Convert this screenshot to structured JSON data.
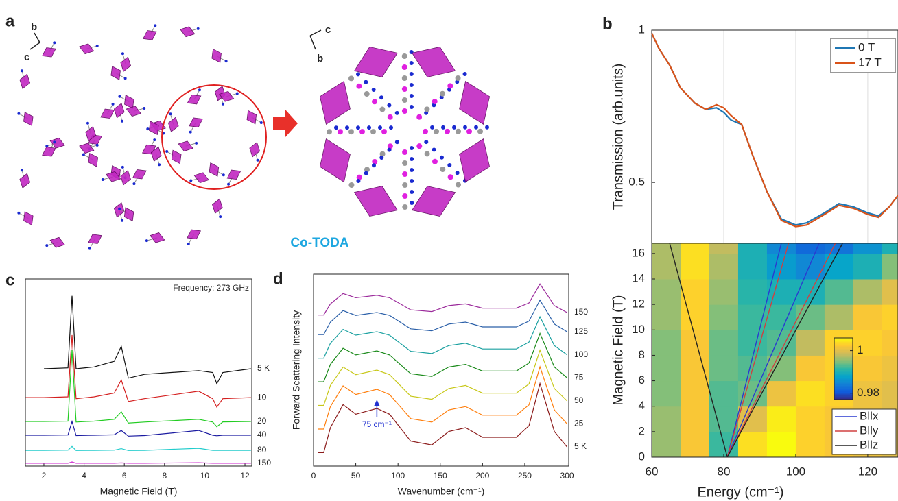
{
  "panel_labels": [
    "a",
    "b",
    "c",
    "d"
  ],
  "structure": {
    "axes_left": [
      "b",
      "c"
    ],
    "axes_right": [
      "c",
      "b"
    ],
    "compound": "Co-TODA"
  },
  "chart_data": [
    {
      "type": "line",
      "annotation": "Frequency: 273 GHz",
      "x_label": "Magnetic Field (T)",
      "x": [
        1.1,
        2,
        3.2,
        3.4,
        3.6,
        4.5,
        5.5,
        5.85,
        6.2,
        7,
        9.7,
        10.4,
        10.6,
        10.9,
        12.3
      ],
      "xlim": [
        1.08,
        12.34
      ],
      "xticks": [
        2,
        4,
        6,
        8,
        10,
        12
      ],
      "ylim": [
        0,
        100
      ],
      "series": [
        {
          "name": "5 K",
          "color": "#111111",
          "values": [
            null,
            52,
            52.5,
            91,
            52,
            53,
            56,
            64,
            47,
            49,
            51,
            50,
            44,
            50,
            52
          ]
        },
        {
          "name": "10",
          "color": "#d42020",
          "values": [
            36.6,
            36.6,
            37,
            70,
            36,
            37,
            39,
            46,
            34.5,
            36,
            40,
            36,
            31.5,
            36,
            36.6
          ]
        },
        {
          "name": "20",
          "color": "#22cc22",
          "values": [
            23.8,
            23.8,
            24,
            62,
            23.5,
            24,
            25,
            29,
            23,
            23.5,
            25,
            23.5,
            21,
            23.6,
            23.8
          ]
        },
        {
          "name": "40",
          "color": "#1a1aa0",
          "values": [
            16.5,
            16.5,
            16.6,
            23.8,
            16.3,
            16.5,
            16.7,
            19,
            16,
            16.3,
            19,
            16.5,
            16.2,
            16.5,
            16.5
          ]
        },
        {
          "name": "80",
          "color": "#22cccc",
          "values": [
            8.4,
            8.4,
            8.5,
            10.5,
            8.3,
            8.4,
            8.5,
            9.3,
            8.3,
            8.4,
            9.5,
            8.4,
            8.4,
            8.4,
            8.4
          ]
        },
        {
          "name": "150",
          "color": "#cc22cc",
          "values": [
            1.5,
            1.5,
            1.5,
            2.2,
            1.5,
            1.5,
            1.5,
            1.7,
            1.5,
            1.5,
            1.8,
            1.5,
            1.5,
            1.5,
            1.5
          ]
        }
      ]
    },
    {
      "type": "line",
      "y_label": "Forward Scattering Intensity",
      "x_label": "Wavenumber (cm⁻¹)",
      "annotation": {
        "text": "75 cm⁻¹",
        "x": 75
      },
      "x": [
        5,
        12,
        20,
        35,
        50,
        75,
        90,
        115,
        140,
        160,
        180,
        200,
        240,
        255,
        268,
        285,
        300
      ],
      "xlim": [
        0,
        302
      ],
      "xticks": [
        0,
        50,
        100,
        150,
        200,
        250,
        300
      ],
      "ylim": [
        0,
        100
      ],
      "series": [
        {
          "name": "150",
          "color": "#9b2a9b",
          "values": [
            78.7,
            78.7,
            84.5,
            89.9,
            87.7,
            89,
            87.7,
            81.4,
            80.5,
            83.6,
            84.5,
            82.3,
            82.3,
            85,
            94.9,
            83.6,
            80
          ]
        },
        {
          "name": "125",
          "color": "#2a5fa8",
          "values": [
            68.5,
            68.5,
            75,
            81,
            78.5,
            80,
            78.5,
            71.5,
            70.5,
            74,
            75,
            72.5,
            72.5,
            75.5,
            86.5,
            74,
            70
          ]
        },
        {
          "name": "100",
          "color": "#1aa0a0",
          "values": [
            56.2,
            56.2,
            64,
            71.2,
            68.2,
            70,
            68.2,
            59.8,
            58.6,
            62.8,
            64,
            61,
            61,
            64.6,
            77.8,
            62.8,
            58
          ]
        },
        {
          "name": "75",
          "color": "#1a8a1a",
          "values": [
            43.9,
            43.9,
            53,
            61.4,
            57.9,
            60,
            57.9,
            48.1,
            46.7,
            51.6,
            53,
            49.5,
            49.5,
            53.7,
            69.1,
            51.6,
            46
          ]
        },
        {
          "name": "50",
          "color": "#c8c81a",
          "values": [
            31.6,
            31.6,
            42,
            51.6,
            47.6,
            50,
            47.6,
            36.4,
            34.8,
            40.4,
            42,
            38,
            38,
            42.8,
            60.4,
            40.4,
            34
          ]
        },
        {
          "name": "25",
          "color": "#ff7f0e",
          "values": [
            19.3,
            19.3,
            31,
            41.8,
            37.3,
            40,
            37.3,
            24.7,
            22.9,
            29.2,
            31,
            26.5,
            26.5,
            31.9,
            51.7,
            29.2,
            22
          ]
        },
        {
          "name": "5 K",
          "color": "#8b1a1a",
          "values": [
            7,
            7,
            20,
            32,
            27,
            30,
            27,
            13,
            11,
            18,
            20,
            15,
            15,
            21,
            43,
            18,
            10
          ]
        }
      ]
    },
    {
      "type": "line",
      "y_label": "Transmission (arb.units)",
      "legend": "upper right",
      "x": [
        60,
        62,
        65,
        68,
        72,
        75,
        78,
        80,
        82,
        85,
        88,
        92,
        96,
        100,
        103,
        108,
        112,
        116,
        120,
        123,
        126,
        128.4
      ],
      "xlim": [
        60,
        128.4
      ],
      "ylim": [
        0.3,
        1
      ],
      "yticks": [
        0.5,
        1
      ],
      "xgrid": [
        80,
        100,
        120
      ],
      "series": [
        {
          "name": "0 T",
          "color": "#1f77b4",
          "values": [
            0.99,
            0.94,
            0.885,
            0.81,
            0.76,
            0.74,
            0.745,
            0.73,
            0.705,
            0.69,
            0.59,
            0.47,
            0.38,
            0.36,
            0.367,
            0.4,
            0.43,
            0.42,
            0.4,
            0.39,
            0.42,
            0.457
          ]
        },
        {
          "name": "17 T",
          "color": "#d95319",
          "values": [
            0.99,
            0.94,
            0.885,
            0.81,
            0.76,
            0.74,
            0.755,
            0.745,
            0.72,
            0.69,
            0.59,
            0.47,
            0.375,
            0.355,
            0.36,
            0.395,
            0.425,
            0.415,
            0.395,
            0.385,
            0.42,
            0.457
          ]
        }
      ]
    },
    {
      "type": "heatmap",
      "x_label": "Energy (cm⁻¹)",
      "y_label": "Magnetic Field (T)",
      "legend": "lower right",
      "xlim": [
        60,
        128.4
      ],
      "ylim": [
        0,
        16.8
      ],
      "xticks": [
        60,
        80,
        100,
        120
      ],
      "yticks": [
        0,
        2,
        4,
        6,
        8,
        10,
        12,
        14,
        16
      ],
      "x_edges": [
        60,
        68,
        76,
        84,
        92,
        100,
        108,
        116,
        124,
        128.4
      ],
      "y_edges": [
        0,
        2,
        4,
        6,
        8,
        10,
        12,
        14,
        16,
        16.8
      ],
      "z": [
        [
          0.996,
          1.002,
          0.992,
          1.004,
          1.006,
          1.003,
          1.002,
          1.001,
          1.0
        ],
        [
          0.996,
          1.002,
          0.993,
          1.0,
          1.005,
          1.003,
          1.002,
          1.001,
          1.0
        ],
        [
          0.995,
          1.002,
          0.993,
          0.994,
          1.001,
          1.004,
          1.003,
          1.001,
          1.0
        ],
        [
          0.995,
          1.002,
          0.994,
          0.993,
          0.995,
          1.002,
          1.003,
          1.002,
          1.001
        ],
        [
          0.995,
          1.002,
          0.994,
          0.992,
          0.993,
          0.998,
          1.003,
          1.003,
          1.002
        ],
        [
          0.996,
          1.003,
          0.995,
          0.992,
          0.992,
          0.994,
          0.997,
          1.002,
          1.003
        ],
        [
          0.996,
          1.003,
          0.996,
          0.991,
          0.99,
          0.99,
          0.993,
          0.997,
          1.0
        ],
        [
          0.997,
          1.004,
          0.997,
          0.99,
          0.987,
          0.985,
          0.988,
          0.99,
          0.995
        ],
        [
          0.997,
          1.004,
          0.998,
          0.99,
          0.985,
          0.982,
          0.983,
          0.986,
          0.99
        ]
      ],
      "colormap": [
        "#352a87",
        "#0f5cdd",
        "#1481d6",
        "#06a4ca",
        "#2eb7a4",
        "#87bf77",
        "#d1bb59",
        "#fec832",
        "#f9fb0e"
      ],
      "clim": [
        0.977,
        1.006
      ],
      "cticks": [
        0.98,
        1
      ],
      "series": [
        {
          "name": "Bllx",
          "color": "#2a3ad0",
          "x": [
            81,
            96,
            null,
            81,
            106.5
          ],
          "y": [
            0,
            16.8,
            null,
            0,
            16.8
          ]
        },
        {
          "name": "Blly",
          "color": "#d04040",
          "x": [
            81,
            98,
            null,
            81,
            111
          ],
          "y": [
            0,
            16.8,
            null,
            0,
            16.8
          ]
        },
        {
          "name": "Bllz",
          "color": "#222222",
          "x": [
            81,
            65,
            null,
            81,
            113
          ],
          "y": [
            0,
            16.8,
            null,
            0,
            16.8
          ]
        }
      ]
    }
  ]
}
